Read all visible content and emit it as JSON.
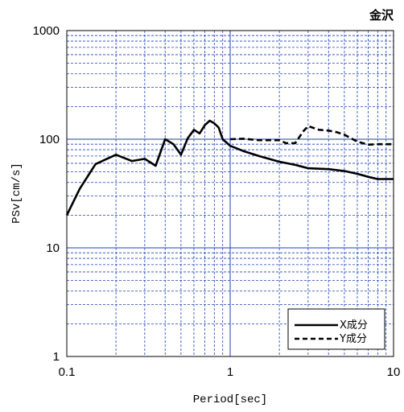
{
  "chart_data": {
    "type": "line",
    "title": "金沢",
    "xlabel": "Period[sec]",
    "ylabel": "PSv[cm/s]",
    "x_scale": "log",
    "y_scale": "log",
    "xlim": [
      0.1,
      10
    ],
    "ylim": [
      1,
      1000
    ],
    "x_ticks": [
      "0.1",
      "1",
      "10"
    ],
    "y_ticks": [
      "1",
      "10",
      "100",
      "1000"
    ],
    "grid": true,
    "legend_position": "bottom-right",
    "series": [
      {
        "name": "X成分",
        "style": "solid",
        "color": "#000000",
        "x": [
          0.1,
          0.12,
          0.15,
          0.2,
          0.25,
          0.3,
          0.35,
          0.4,
          0.45,
          0.5,
          0.55,
          0.6,
          0.65,
          0.7,
          0.75,
          0.8,
          0.85,
          0.9,
          1.0,
          1.2,
          1.5,
          2.0,
          2.5,
          3.0,
          4.0,
          5.0,
          6.0,
          7.0,
          8.0,
          10.0
        ],
        "y": [
          20,
          35,
          59,
          72,
          63,
          66,
          57,
          100,
          90,
          72,
          102,
          122,
          113,
          135,
          148,
          140,
          128,
          100,
          87,
          78,
          70,
          62,
          58,
          54,
          53,
          51,
          48,
          45,
          43,
          43
        ]
      },
      {
        "name": "Y成分",
        "style": "dashed",
        "color": "#000000",
        "x": [
          1.0,
          1.2,
          1.5,
          2.0,
          2.2,
          2.5,
          2.8,
          3.0,
          3.5,
          4.0,
          4.5,
          5.0,
          6.0,
          7.0,
          8.0,
          10.0
        ],
        "y": [
          100,
          101,
          98,
          98,
          92,
          92,
          118,
          132,
          122,
          120,
          116,
          110,
          95,
          89,
          90,
          90
        ]
      }
    ]
  }
}
